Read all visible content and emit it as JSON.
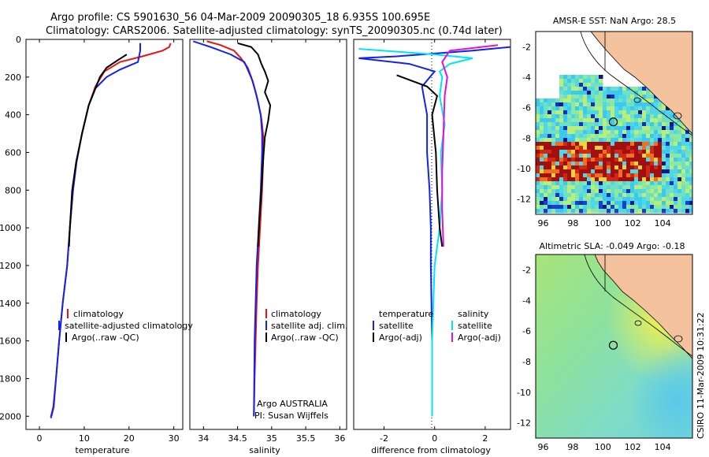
{
  "header": {
    "title_line1": "Argo profile: CS 5901630_56 04-Mar-2009 20090305_18 6.935S 100.695E",
    "title_line2": "Climatology: CARS2006. Satellite-adjusted climatology: synTS_20090305.nc (0.74d later)"
  },
  "side_label": "CSIRO 11-Mar-2009 10:31:22",
  "chart_data": [
    {
      "type": "line",
      "xlabel": "temperature",
      "xlim": [
        -3,
        32
      ],
      "ylim": [
        2070,
        0
      ],
      "xticks": [
        0,
        10,
        20,
        30
      ],
      "yticks": [
        0,
        200,
        400,
        600,
        800,
        1000,
        1200,
        1400,
        1600,
        1800,
        2000
      ],
      "legend": {
        "placement": "lower-right",
        "entries": [
          {
            "label": "climatology",
            "color": "#ee1111"
          },
          {
            "label": "satellite-adjusted climatology",
            "color": "#1122ee"
          },
          {
            "label": "Argo(..raw -QC)",
            "color": "#000000"
          }
        ]
      },
      "series": [
        {
          "color": "#ee1111",
          "x": [
            29.3,
            29.0,
            27.5,
            23.0,
            18.0,
            14.5,
            12.5,
            11.0,
            9.5,
            8.3,
            7.5,
            6.8,
            6.2,
            5.2,
            4.4,
            3.7,
            3.2,
            2.7
          ],
          "y": [
            20,
            40,
            60,
            90,
            120,
            170,
            250,
            350,
            500,
            650,
            800,
            1000,
            1200,
            1400,
            1600,
            1800,
            1950,
            2000
          ]
        },
        {
          "color": "#1122ee",
          "x": [
            22.5,
            22.5,
            22.0,
            18.0,
            15.0,
            12.5,
            11.0,
            9.5,
            8.3,
            7.5,
            6.8,
            6.2,
            5.2,
            4.4,
            3.7,
            3.1,
            2.6,
            2.6
          ],
          "y": [
            20,
            60,
            120,
            160,
            200,
            260,
            350,
            500,
            650,
            800,
            1000,
            1200,
            1400,
            1600,
            1800,
            1950,
            2000,
            2010
          ]
        },
        {
          "color": "#000000",
          "x": [
            19.5,
            17.5,
            15.0,
            13.5,
            12.5,
            11.0,
            9.5,
            8.2,
            7.3,
            6.8,
            6.6
          ],
          "y": [
            80,
            110,
            150,
            200,
            260,
            350,
            500,
            650,
            800,
            1000,
            1100
          ]
        }
      ]
    },
    {
      "type": "line",
      "xlabel": "salinity",
      "xlim": [
        33.8,
        36.1
      ],
      "ylim": [
        2070,
        0
      ],
      "xticks": [
        34,
        34.5,
        35,
        35.5,
        36
      ],
      "legend": {
        "placement": "lower-right",
        "entries": [
          {
            "label": "climatology",
            "color": "#ee1111"
          },
          {
            "label": "satellite adj. clim.",
            "color": "#1122ee"
          },
          {
            "label": "Argo(..raw -QC)",
            "color": "#000000"
          }
        ]
      },
      "annotation": "Argo AUSTRALIA\nPI: Susan Wijffels",
      "series": [
        {
          "color": "#ee1111",
          "x": [
            34.05,
            34.25,
            34.45,
            34.55,
            34.65,
            34.7,
            34.75,
            34.8,
            34.85,
            34.88,
            34.88,
            34.86,
            34.83,
            34.8,
            34.78,
            34.75,
            34.74
          ],
          "y": [
            10,
            30,
            60,
            100,
            150,
            200,
            260,
            330,
            420,
            520,
            600,
            800,
            1000,
            1200,
            1400,
            1800,
            2000
          ]
        },
        {
          "color": "#1122ee",
          "x": [
            33.85,
            34.1,
            34.4,
            34.6,
            34.65,
            34.72,
            34.78,
            34.84,
            34.86,
            34.86,
            34.84,
            34.81,
            34.78,
            34.75,
            34.74
          ],
          "y": [
            10,
            40,
            80,
            120,
            160,
            220,
            300,
            400,
            500,
            600,
            800,
            1000,
            1200,
            1600,
            2000
          ]
        },
        {
          "color": "#000000",
          "x": [
            34.5,
            34.7,
            34.8,
            34.85,
            34.9,
            34.95,
            34.9,
            34.98,
            34.95,
            34.9,
            34.88,
            34.85,
            34.82,
            34.8
          ],
          "y": [
            20,
            40,
            80,
            130,
            170,
            220,
            280,
            350,
            430,
            520,
            620,
            800,
            950,
            1100
          ]
        }
      ]
    },
    {
      "type": "line",
      "xlabel": "difference from climatology",
      "xlim": [
        -3.2,
        3.0
      ],
      "ylim": [
        2070,
        0
      ],
      "xticks": [
        -2,
        0,
        2
      ],
      "legend": {
        "placement": "lower",
        "entries": [
          {
            "label": "temperature",
            "color": ""
          },
          {
            "label": "satellite",
            "color": "#1122ee"
          },
          {
            "label": "Argo(-adj)",
            "color": "#000000"
          },
          {
            "label": "salinity",
            "color": ""
          },
          {
            "label": "satellite",
            "color": "#00e5ee"
          },
          {
            "label": "Argo(-adj)",
            "color": "#dd11dd"
          }
        ]
      },
      "series": [
        {
          "color": "#1122ee",
          "x": [
            3.0,
            1.5,
            -0.5,
            -1.5,
            -3.0,
            -1.0,
            0.0,
            -0.5,
            -0.3,
            -0.3,
            -0.2,
            -0.15,
            -0.15,
            -0.1,
            -0.1,
            -0.1
          ],
          "y": [
            40,
            60,
            80,
            90,
            100,
            130,
            170,
            250,
            400,
            600,
            800,
            1000,
            1200,
            1600,
            1800,
            2000
          ]
        },
        {
          "color": "#00e5ee",
          "x": [
            -3.0,
            0.0,
            1.5,
            0.6,
            0.2,
            0.3,
            0.2,
            0.4,
            0.25,
            0.3,
            0.2,
            0.0,
            -0.1,
            -0.1
          ],
          "y": [
            50,
            80,
            100,
            130,
            170,
            200,
            300,
            450,
            600,
            800,
            1000,
            1200,
            1600,
            2000
          ]
        },
        {
          "color": "#dd11dd",
          "x": [
            2.5,
            0.6,
            0.3,
            0.5,
            0.4,
            0.35,
            0.3,
            0.3,
            0.35
          ],
          "y": [
            30,
            60,
            120,
            200,
            300,
            500,
            700,
            900,
            1100
          ]
        },
        {
          "color": "#000000",
          "x": [
            -1.5,
            -0.3,
            0.1,
            -0.1,
            0.05,
            0.1,
            0.2,
            0.3
          ],
          "y": [
            190,
            250,
            300,
            400,
            600,
            800,
            1000,
            1100
          ]
        }
      ]
    },
    {
      "type": "heatmap",
      "title": "AMSR-E SST: NaN Argo: 28.5",
      "xlim": [
        95.5,
        106
      ],
      "ylim": [
        -13,
        -1
      ],
      "xticks": [
        96,
        98,
        100,
        102,
        104
      ],
      "yticks": [
        -2,
        -4,
        -6,
        -8,
        -10,
        -12
      ],
      "profile_location": [
        100.695,
        -6.935
      ]
    },
    {
      "type": "heatmap",
      "title": "Altimetric SLA: -0.049 Argo: -0.18",
      "xlim": [
        95.5,
        106
      ],
      "ylim": [
        -13,
        -1
      ],
      "xticks": [
        96,
        98,
        100,
        102,
        104
      ],
      "yticks": [
        -2,
        -4,
        -6,
        -8,
        -10,
        -12
      ],
      "profile_location": [
        100.695,
        -6.935
      ]
    }
  ]
}
